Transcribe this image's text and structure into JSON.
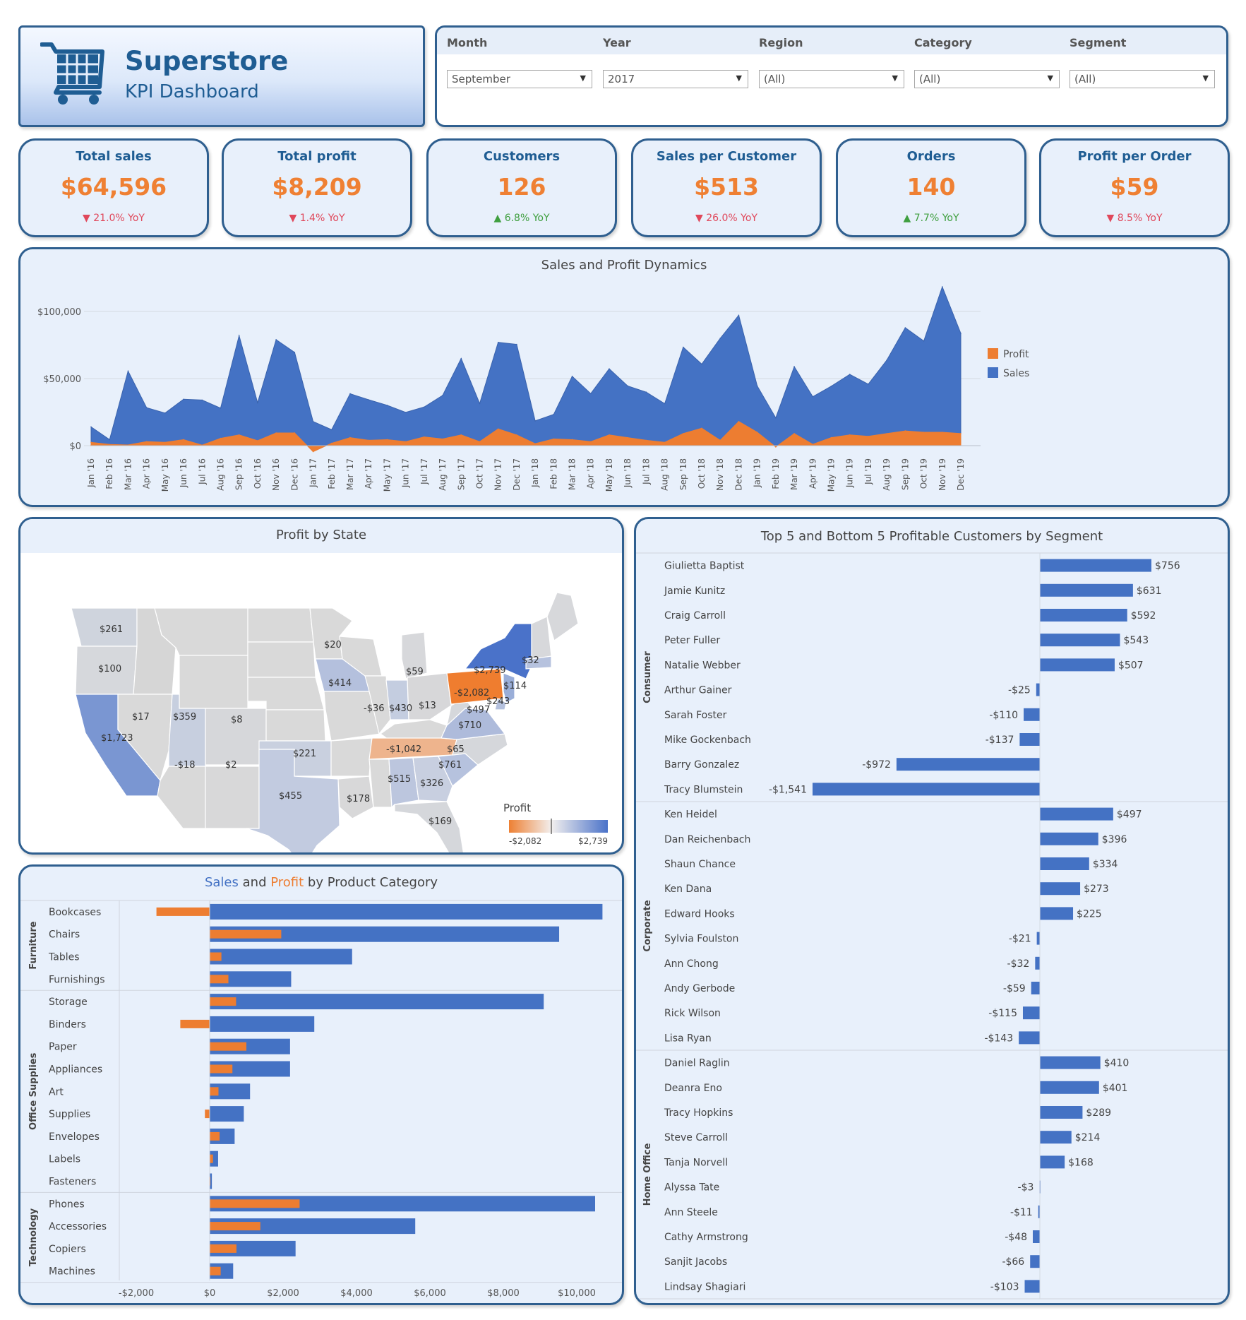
{
  "header": {
    "title": "Superstore",
    "subtitle": "KPI Dashboard"
  },
  "filters": [
    {
      "label": "Month",
      "value": "September"
    },
    {
      "label": "Year",
      "value": "2017"
    },
    {
      "label": "Region",
      "value": "(All)"
    },
    {
      "label": "Category",
      "value": "(All)"
    },
    {
      "label": "Segment",
      "value": "(All)"
    }
  ],
  "kpis": [
    {
      "label": "Total sales",
      "value": "$64,596",
      "arrow": "▼",
      "yoy": "21.0% YoY",
      "dir": "down"
    },
    {
      "label": "Total profit",
      "value": "$8,209",
      "arrow": "▼",
      "yoy": "1.4% YoY",
      "dir": "down"
    },
    {
      "label": "Customers",
      "value": "126",
      "arrow": "▲",
      "yoy": "6.8% YoY",
      "dir": "up"
    },
    {
      "label": "Sales per Customer",
      "value": "$513",
      "arrow": "▼",
      "yoy": "26.0% YoY",
      "dir": "down"
    },
    {
      "label": "Orders",
      "value": "140",
      "arrow": "▲",
      "yoy": "7.7% YoY",
      "dir": "up"
    },
    {
      "label": "Profit per Order",
      "value": "$59",
      "arrow": "▼",
      "yoy": "8.5% YoY",
      "dir": "down"
    }
  ],
  "colors": {
    "sales": "#4472c4",
    "profit": "#ed7d31",
    "border": "#2f5f8f",
    "title_blue": "#1f5d93"
  },
  "chart_data": [
    {
      "type": "area",
      "title": "Sales and Profit Dynamics",
      "ylim": [
        0,
        120000
      ],
      "yticks": [
        0,
        50000,
        100000
      ],
      "ytick_labels": [
        "$0",
        "$50,000",
        "$100,000"
      ],
      "x": [
        "Jan '16",
        "Feb '16",
        "Mar '16",
        "Apr '16",
        "May '16",
        "Jun '16",
        "Jul '16",
        "Aug '16",
        "Sep '16",
        "Oct '16",
        "Nov '16",
        "Dec '16",
        "Jan '17",
        "Feb '17",
        "Mar '17",
        "Apr '17",
        "May '17",
        "Jun '17",
        "Jul '17",
        "Aug '17",
        "Sep '17",
        "Oct '17",
        "Nov '17",
        "Dec '17",
        "Jan '18",
        "Feb '18",
        "Mar '18",
        "Apr '18",
        "May '18",
        "Jun '18",
        "Jul '18",
        "Aug '18",
        "Sep '18",
        "Oct '18",
        "Nov '18",
        "Dec '18",
        "Jan '19",
        "Feb '19",
        "Mar '19",
        "Apr '19",
        "May '19",
        "Jun '19",
        "Jul '19",
        "Aug '19",
        "Sep '19",
        "Oct '19",
        "Nov '19",
        "Dec '19"
      ],
      "legend": [
        "Profit",
        "Sales"
      ],
      "legend_position": "right",
      "series": [
        {
          "name": "Sales",
          "values": [
            14000,
            4500,
            55600,
            28300,
            24300,
            34600,
            34000,
            28000,
            82000,
            32000,
            79000,
            69500,
            18000,
            11900,
            38700,
            34200,
            30100,
            24800,
            28800,
            37500,
            65000,
            31400,
            77000,
            75500,
            18500,
            23300,
            51700,
            38800,
            57300,
            44500,
            39900,
            31300,
            73400,
            60800,
            80000,
            97200,
            44500,
            20700,
            58900,
            36500,
            44300,
            53100,
            45800,
            63700,
            87900,
            78000,
            118400,
            83700
          ]
        },
        {
          "name": "Profit",
          "values": [
            2500,
            900,
            500,
            3000,
            2500,
            4500,
            400,
            5500,
            8000,
            3700,
            9500,
            9500,
            -4500,
            1800,
            6000,
            4000,
            4500,
            3000,
            6500,
            5000,
            8000,
            3000,
            12500,
            8000,
            1500,
            5000,
            4500,
            3000,
            8000,
            6000,
            4000,
            2500,
            9000,
            13000,
            4000,
            18000,
            10000,
            -1000,
            9000,
            1000,
            6000,
            8000,
            7000,
            9000,
            11000,
            10000,
            10000,
            9000
          ]
        }
      ]
    },
    {
      "type": "heatmap",
      "title": "Profit by State",
      "legend_title": "Profit",
      "legend_min": "-$2,082",
      "legend_max": "$2,739",
      "labels": [
        "$261",
        "$100",
        "$17",
        "$359",
        "$8",
        "$1,723",
        "-$18",
        "$2",
        "$221",
        "$455",
        "$20",
        "$414",
        "-$36",
        "$430",
        "$59",
        "$13",
        "$2,739",
        "$32",
        "$114",
        "-$2,082",
        "$243",
        "$497",
        "$710",
        "-$1,042",
        "$65",
        "$761",
        "$515",
        "$326",
        "$178",
        "$169"
      ]
    },
    {
      "type": "bar",
      "title": "Sales and Profit by Product Category",
      "title_parts": [
        "Sales",
        "and",
        "Profit",
        "by Product Category"
      ],
      "xlim": [
        -2000,
        11000
      ],
      "xtick_labels": [
        "-$2,000",
        "$0",
        "$2,000",
        "$4,000",
        "$6,000",
        "$8,000",
        "$10,000"
      ],
      "groups": [
        {
          "name": "Furniture",
          "items": [
            {
              "category": "Bookcases",
              "sales": 10700,
              "profit": -1450
            },
            {
              "category": "Chairs",
              "sales": 9520,
              "profit": 1950
            },
            {
              "category": "Tables",
              "sales": 3880,
              "profit": 320
            },
            {
              "category": "Furnishings",
              "sales": 2220,
              "profit": 510
            }
          ]
        },
        {
          "name": "Office Supplies",
          "items": [
            {
              "category": "Storage",
              "sales": 9100,
              "profit": 720
            },
            {
              "category": "Binders",
              "sales": 2850,
              "profit": -800
            },
            {
              "category": "Paper",
              "sales": 2190,
              "profit": 1000
            },
            {
              "category": "Appliances",
              "sales": 2190,
              "profit": 620
            },
            {
              "category": "Art",
              "sales": 1100,
              "profit": 240
            },
            {
              "category": "Supplies",
              "sales": 930,
              "profit": -130
            },
            {
              "category": "Envelopes",
              "sales": 680,
              "profit": 270
            },
            {
              "category": "Labels",
              "sales": 230,
              "profit": 90
            },
            {
              "category": "Fasteners",
              "sales": 60,
              "profit": 20
            }
          ]
        },
        {
          "name": "Technology",
          "items": [
            {
              "category": "Phones",
              "sales": 10500,
              "profit": 2450
            },
            {
              "category": "Accessories",
              "sales": 5600,
              "profit": 1380
            },
            {
              "category": "Copiers",
              "sales": 2340,
              "profit": 730
            },
            {
              "category": "Machines",
              "sales": 640,
              "profit": 300
            }
          ]
        }
      ]
    },
    {
      "type": "bar",
      "title": "Top 5 and Bottom 5 Profitable Customers by Segment",
      "xlim": [
        -1541,
        756
      ],
      "groups": [
        {
          "name": "Consumer",
          "items": [
            {
              "name": "Giulietta Baptist",
              "value": 756,
              "label": "$756"
            },
            {
              "name": "Jamie Kunitz",
              "value": 631,
              "label": "$631"
            },
            {
              "name": "Craig Carroll",
              "value": 592,
              "label": "$592"
            },
            {
              "name": "Peter Fuller",
              "value": 543,
              "label": "$543"
            },
            {
              "name": "Natalie Webber",
              "value": 507,
              "label": "$507"
            },
            {
              "name": "Arthur Gainer",
              "value": -25,
              "label": "-$25"
            },
            {
              "name": "Sarah Foster",
              "value": -110,
              "label": "-$110"
            },
            {
              "name": "Mike Gockenbach",
              "value": -137,
              "label": "-$137"
            },
            {
              "name": "Barry Gonzalez",
              "value": -972,
              "label": "-$972"
            },
            {
              "name": "Tracy Blumstein",
              "value": -1541,
              "label": "-$1,541"
            }
          ]
        },
        {
          "name": "Corporate",
          "items": [
            {
              "name": "Ken Heidel",
              "value": 497,
              "label": "$497"
            },
            {
              "name": "Dan Reichenbach",
              "value": 396,
              "label": "$396"
            },
            {
              "name": "Shaun Chance",
              "value": 334,
              "label": "$334"
            },
            {
              "name": "Ken Dana",
              "value": 273,
              "label": "$273"
            },
            {
              "name": "Edward Hooks",
              "value": 225,
              "label": "$225"
            },
            {
              "name": "Sylvia Foulston",
              "value": -21,
              "label": "-$21"
            },
            {
              "name": "Ann Chong",
              "value": -32,
              "label": "-$32"
            },
            {
              "name": "Andy Gerbode",
              "value": -59,
              "label": "-$59"
            },
            {
              "name": "Rick Wilson",
              "value": -115,
              "label": "-$115"
            },
            {
              "name": "Lisa Ryan",
              "value": -143,
              "label": "-$143"
            }
          ]
        },
        {
          "name": "Home Office",
          "items": [
            {
              "name": "Daniel Raglin",
              "value": 410,
              "label": "$410"
            },
            {
              "name": "Deanra Eno",
              "value": 401,
              "label": "$401"
            },
            {
              "name": "Tracy Hopkins",
              "value": 289,
              "label": "$289"
            },
            {
              "name": "Steve Carroll",
              "value": 214,
              "label": "$214"
            },
            {
              "name": "Tanja Norvell",
              "value": 168,
              "label": "$168"
            },
            {
              "name": "Alyssa Tate",
              "value": -3,
              "label": "-$3"
            },
            {
              "name": "Ann Steele",
              "value": -11,
              "label": "-$11"
            },
            {
              "name": "Cathy Armstrong",
              "value": -48,
              "label": "-$48"
            },
            {
              "name": "Sanjit Jacobs",
              "value": -66,
              "label": "-$66"
            },
            {
              "name": "Lindsay Shagiari",
              "value": -103,
              "label": "-$103"
            }
          ]
        }
      ]
    }
  ]
}
